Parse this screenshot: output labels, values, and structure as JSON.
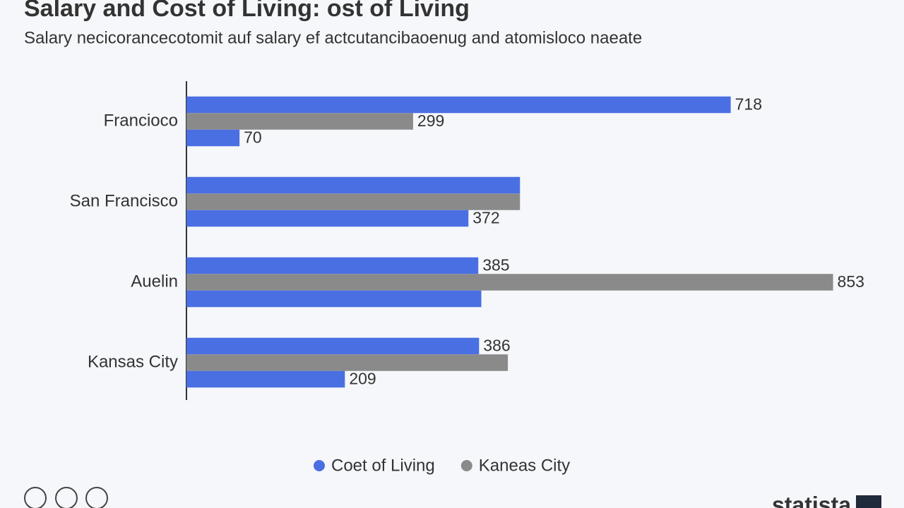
{
  "chart_data": {
    "type": "bar",
    "orientation": "horizontal",
    "title": "Salary and Cost of Living: ost of Living",
    "subtitle": "Salary necicorancecotomit auf salary ef actcutancibaoenug and atomisloco naeate",
    "categories": [
      "Francioco",
      "San Francisco",
      "Auelin",
      "Kansas City"
    ],
    "series": [
      {
        "name": "Coet of Living",
        "color": "#4a6fe3",
        "values": [
          718,
          440,
          385,
          386
        ],
        "value_labels": [
          "718",
          null,
          "385",
          "386"
        ]
      },
      {
        "name": "Kanеas City",
        "color": "#8a8a8a",
        "values": [
          299,
          440,
          853,
          424
        ],
        "value_labels": [
          "299",
          null,
          "853",
          null
        ]
      },
      {
        "color": "#4a6fe3",
        "values": [
          70,
          372,
          389,
          209
        ],
        "value_labels": [
          "70",
          "372",
          null,
          "209"
        ]
      }
    ],
    "xlim": [
      0,
      900
    ],
    "legend": "bottom"
  },
  "footer": {
    "brand": "statista"
  }
}
